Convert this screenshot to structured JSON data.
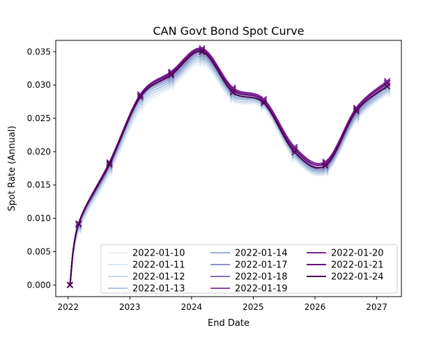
{
  "chart_data": {
    "type": "line",
    "title": "CAN Govt Bond Spot Curve",
    "xlabel": "End Date",
    "ylabel": "Spot Rate (Annual)",
    "xlim": [
      2021.8,
      2027.4
    ],
    "ylim": [
      -0.00175,
      0.0367
    ],
    "x_ticks": [
      2022,
      2023,
      2024,
      2025,
      2026,
      2027
    ],
    "y_ticks": [
      "0.000",
      "0.005",
      "0.010",
      "0.015",
      "0.020",
      "0.025",
      "0.030",
      "0.035"
    ],
    "legend_position": "lower-right",
    "legend_columns": 3,
    "x": [
      2022.03,
      2022.17,
      2022.67,
      2023.17,
      2023.67,
      2024.17,
      2024.67,
      2025.17,
      2025.67,
      2026.17,
      2026.67,
      2027.17
    ],
    "series": [
      {
        "name": "2022-01-10",
        "color": "#eef4fa",
        "values": [
          0.0,
          0.008,
          0.0165,
          0.0262,
          0.0296,
          0.0331,
          0.0276,
          0.0264,
          0.0188,
          0.0167,
          0.0246,
          0.0286
        ]
      },
      {
        "name": "2022-01-11",
        "color": "#dde8f3",
        "values": [
          0.0,
          0.0082,
          0.0168,
          0.0266,
          0.0299,
          0.0334,
          0.0278,
          0.0266,
          0.019,
          0.0168,
          0.0248,
          0.0288
        ]
      },
      {
        "name": "2022-01-12",
        "color": "#c8d8eb",
        "values": [
          0.0,
          0.0084,
          0.0171,
          0.027,
          0.0302,
          0.0337,
          0.028,
          0.0268,
          0.0192,
          0.017,
          0.025,
          0.029
        ]
      },
      {
        "name": "2022-01-13",
        "color": "#aec4e0",
        "values": [
          0.0,
          0.0086,
          0.0174,
          0.0274,
          0.0305,
          0.034,
          0.0283,
          0.027,
          0.0194,
          0.0172,
          0.0252,
          0.0292
        ]
      },
      {
        "name": "2022-01-14",
        "color": "#95b0d7",
        "values": [
          0.0,
          0.0088,
          0.0176,
          0.0278,
          0.0308,
          0.0343,
          0.0285,
          0.0272,
          0.0196,
          0.0174,
          0.0254,
          0.0295
        ]
      },
      {
        "name": "2022-01-17",
        "color": "#8c8fc6",
        "values": [
          0.0,
          0.0089,
          0.0178,
          0.0281,
          0.0311,
          0.0346,
          0.0288,
          0.0274,
          0.0199,
          0.0176,
          0.0257,
          0.0298
        ]
      },
      {
        "name": "2022-01-18",
        "color": "#8970b8",
        "values": [
          0.0,
          0.009,
          0.018,
          0.0283,
          0.0314,
          0.0349,
          0.0291,
          0.0276,
          0.0202,
          0.0179,
          0.026,
          0.0301
        ]
      },
      {
        "name": "2022-01-19",
        "color": "#8448a8",
        "values": [
          0.0,
          0.0091,
          0.0181,
          0.0285,
          0.0317,
          0.0352,
          0.0294,
          0.0278,
          0.0205,
          0.0182,
          0.0263,
          0.0304
        ]
      },
      {
        "name": "2022-01-20",
        "color": "#7d2397",
        "values": [
          0.0,
          0.0092,
          0.0183,
          0.0286,
          0.032,
          0.0355,
          0.0296,
          0.0279,
          0.0207,
          0.0185,
          0.0266,
          0.0306
        ]
      },
      {
        "name": "2022-01-21",
        "color": "#690f80",
        "values": [
          0.0,
          0.0092,
          0.0184,
          0.0285,
          0.0318,
          0.0353,
          0.0293,
          0.0276,
          0.0203,
          0.0183,
          0.0264,
          0.0303
        ]
      },
      {
        "name": "2022-01-24",
        "color": "#4d0050",
        "values": [
          0.0,
          0.0092,
          0.0181,
          0.0282,
          0.0315,
          0.035,
          0.0289,
          0.0273,
          0.0199,
          0.0179,
          0.0261,
          0.0298
        ]
      }
    ]
  }
}
